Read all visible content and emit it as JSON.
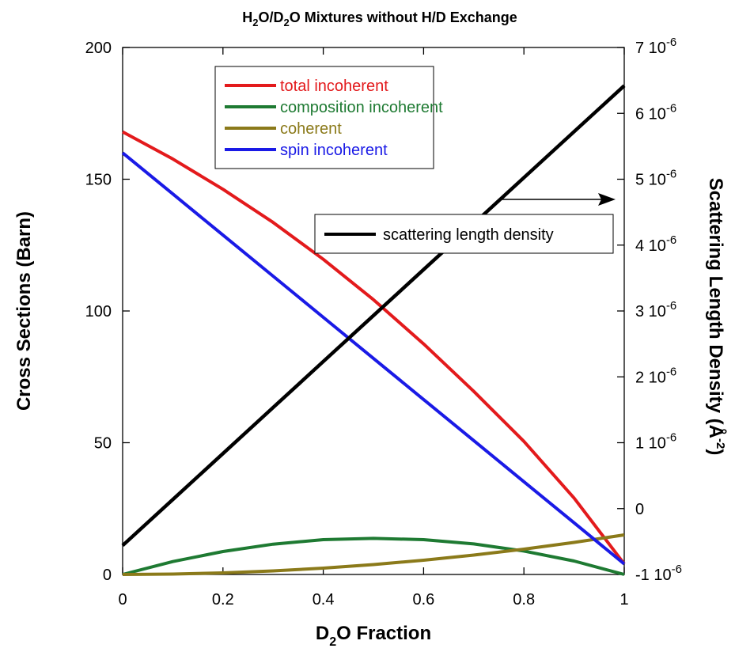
{
  "chart_data": {
    "type": "line",
    "title": {
      "pre": "H",
      "s1": "2",
      "mid": "O/D",
      "s2": "2",
      "post": "O Mixtures without H/D Exchange"
    },
    "xlabel": {
      "pre": "D",
      "sub": "2",
      "post": "O Fraction"
    },
    "ylabel_left": "Cross Sections (Barn)",
    "ylabel_right": {
      "main": "Scattering Length Density (Å",
      "sup": "-2",
      "close": ")"
    },
    "xlim": [
      0,
      1
    ],
    "ylim_left": [
      0,
      200
    ],
    "ylim_right": [
      -1e-06,
      7e-06
    ],
    "grid": false,
    "x_ticks": [
      {
        "v": 0,
        "label": "0"
      },
      {
        "v": 0.2,
        "label": "0.2"
      },
      {
        "v": 0.4,
        "label": "0.4"
      },
      {
        "v": 0.6,
        "label": "0.6"
      },
      {
        "v": 0.8,
        "label": "0.8"
      },
      {
        "v": 1,
        "label": "1"
      }
    ],
    "y_ticks_left": [
      {
        "v": 0,
        "label": "0"
      },
      {
        "v": 50,
        "label": "50"
      },
      {
        "v": 100,
        "label": "100"
      },
      {
        "v": 150,
        "label": "150"
      },
      {
        "v": 200,
        "label": "200"
      }
    ],
    "y_ticks_right": [
      {
        "v": -1e-06,
        "base": "-1 10",
        "exp": "-6"
      },
      {
        "v": 0,
        "base": "0",
        "exp": ""
      },
      {
        "v": 1e-06,
        "base": "1 10",
        "exp": "-6"
      },
      {
        "v": 2e-06,
        "base": "2 10",
        "exp": "-6"
      },
      {
        "v": 3e-06,
        "base": "3 10",
        "exp": "-6"
      },
      {
        "v": 4e-06,
        "base": "4 10",
        "exp": "-6"
      },
      {
        "v": 5e-06,
        "base": "5 10",
        "exp": "-6"
      },
      {
        "v": 6e-06,
        "base": "6 10",
        "exp": "-6"
      },
      {
        "v": 7e-06,
        "base": "7 10",
        "exp": "-6"
      }
    ],
    "x": [
      0,
      0.1,
      0.2,
      0.3,
      0.4,
      0.5,
      0.6,
      0.7,
      0.8,
      0.9,
      1.0
    ],
    "series": [
      {
        "name": "total incoherent",
        "axis": "left",
        "color": "#e31a1c",
        "values": [
          168,
          157.7,
          146.2,
          133.6,
          119.6,
          104.3,
          87.5,
          69.5,
          50.5,
          29,
          4
        ]
      },
      {
        "name": "composition incoherent",
        "axis": "left",
        "color": "#1e7a32",
        "values": [
          0,
          4.9,
          8.7,
          11.5,
          13.2,
          13.7,
          13.2,
          11.6,
          8.9,
          5.1,
          0
        ]
      },
      {
        "name": "coherent",
        "axis": "left",
        "color": "#8b7a1a",
        "values": [
          0,
          0.15,
          0.6,
          1.35,
          2.4,
          3.75,
          5.4,
          7.35,
          9.6,
          12.15,
          15
        ]
      },
      {
        "name": "spin incoherent",
        "axis": "left",
        "color": "#1a1ae6",
        "values": [
          160,
          144.4,
          128.8,
          113.2,
          97.6,
          82,
          66.4,
          50.8,
          35.2,
          19.6,
          4
        ]
      },
      {
        "name": "scattering length density",
        "axis": "right",
        "color": "#000000",
        "values": [
          -5.6e-07,
          1.38e-07,
          8.36e-07,
          1.534e-06,
          2.232e-06,
          2.93e-06,
          3.628e-06,
          4.326e-06,
          5.024e-06,
          5.722e-06,
          6.42e-06
        ]
      }
    ],
    "legend_position": "top-left inside plot",
    "sld_legend_position": "right inside plot",
    "annotations": [
      "arrow pointing to right axis"
    ]
  }
}
